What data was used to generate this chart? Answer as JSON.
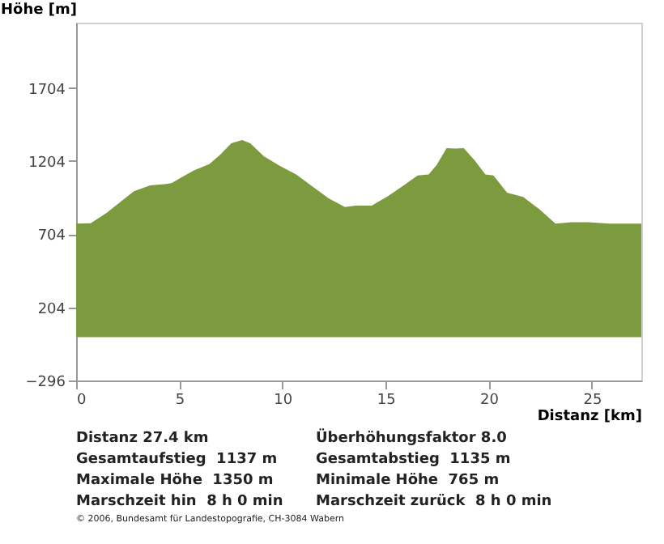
{
  "chart_data": {
    "type": "area",
    "ylabel": "Höhe [m]",
    "xlabel": "Distanz [km]",
    "x": [
      0,
      0.71,
      1.49,
      2.8,
      3.59,
      4.38,
      4.64,
      5.03,
      5.69,
      6.47,
      7.0,
      7.52,
      8.05,
      8.44,
      9.1,
      9.88,
      10.67,
      11.45,
      12.24,
      13.03,
      13.55,
      14.33,
      15.12,
      15.91,
      16.56,
      17.09,
      17.48,
      17.96,
      18.4,
      18.79,
      19.31,
      19.84,
      20.23,
      20.89,
      21.67,
      22.46,
      23.24,
      24.03,
      24.82,
      25.87,
      27.33,
      27.4
    ],
    "values": [
      776,
      779,
      851,
      998,
      1037,
      1047,
      1054,
      1086,
      1139,
      1184,
      1250,
      1325,
      1348,
      1325,
      1237,
      1171,
      1112,
      1031,
      949,
      890,
      900,
      900,
      965,
      1041,
      1106,
      1112,
      1178,
      1292,
      1289,
      1292,
      1211,
      1112,
      1106,
      988,
      959,
      874,
      776,
      786,
      786,
      776,
      776,
      776
    ],
    "color": "#7c9b3e",
    "xlim": [
      0,
      27.4
    ],
    "xticks": [
      0,
      5,
      10,
      15,
      20,
      25
    ],
    "ylim": [
      -296,
      2150
    ],
    "yticks": [
      -296,
      204,
      704,
      1204,
      1704
    ],
    "annotations": [
      "Distanz 27.4 km",
      "Überhöhungsfaktor 8.0",
      "Gesamtaufstieg  1137 m",
      "Gesamtabstieg  1135 m",
      "Maximale Höhe  1350 m",
      "Minimale Höhe  765 m",
      "Marschzeit hin  8 h 0 min",
      "Marschzeit zurück  8 h 0 min",
      "© 2006, Bundesamt für Landestopografie, CH-3084 Wabern"
    ]
  }
}
